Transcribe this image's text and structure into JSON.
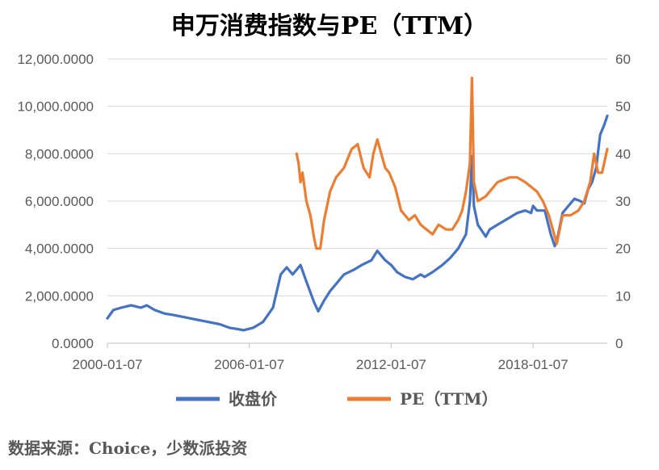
{
  "title": "申万消费指数与PE（TTM）",
  "source": "数据来源：Choice，少数派投资",
  "colors": {
    "index": "#4472C4",
    "pe": "#ED7D31",
    "grid": "#D9D9D9",
    "text": "#595959"
  },
  "chart_data": {
    "type": "line",
    "title": "申万消费指数与PE（TTM）",
    "x_tick_labels": [
      "2000-01-07",
      "2006-01-07",
      "2012-01-07",
      "2018-01-07"
    ],
    "x_range": [
      "2000-01-07",
      "2021-02-26"
    ],
    "y_left": {
      "lim": [
        0,
        12000
      ],
      "ticks": [
        "0.0000",
        "2,000.0000",
        "4,000.0000",
        "6,000.0000",
        "8,000.0000",
        "10,000.0000",
        "12,000.0000"
      ]
    },
    "y_right": {
      "lim": [
        0,
        60
      ],
      "ticks": [
        "0",
        "10",
        "20",
        "30",
        "40",
        "50",
        "60"
      ]
    },
    "grid": true,
    "legend_position": "bottom",
    "series": [
      {
        "name": "收盘价",
        "axis": "left",
        "color": "#4472C4",
        "x": [
          "2000-01-07",
          "2000-04-07",
          "2000-08-07",
          "2001-01-07",
          "2001-06-07",
          "2001-09-07",
          "2002-01-07",
          "2002-06-07",
          "2002-10-07",
          "2003-04-07",
          "2003-10-07",
          "2004-04-07",
          "2004-10-07",
          "2005-03-07",
          "2005-07-07",
          "2005-10-07",
          "2006-03-07",
          "2006-08-07",
          "2007-01-07",
          "2007-05-07",
          "2007-08-07",
          "2007-11-07",
          "2008-03-07",
          "2008-06-07",
          "2008-10-07",
          "2008-12-07",
          "2009-03-07",
          "2009-06-07",
          "2009-09-07",
          "2010-01-07",
          "2010-06-07",
          "2010-10-07",
          "2011-03-07",
          "2011-06-07",
          "2011-10-07",
          "2012-01-07",
          "2012-04-07",
          "2012-08-07",
          "2012-12-07",
          "2013-04-07",
          "2013-06-07",
          "2013-10-07",
          "2014-03-07",
          "2014-07-07",
          "2014-11-07",
          "2015-03-07",
          "2015-05-07",
          "2015-06-07",
          "2015-07-07",
          "2015-09-07",
          "2016-01-07",
          "2016-03-07",
          "2016-07-07",
          "2017-01-07",
          "2017-05-07",
          "2017-09-07",
          "2017-12-07",
          "2018-01-07",
          "2018-03-07",
          "2018-07-07",
          "2018-10-07",
          "2018-12-07",
          "2019-01-07",
          "2019-04-07",
          "2019-07-07",
          "2019-10-07",
          "2020-01-07",
          "2020-03-07",
          "2020-05-07",
          "2020-07-07",
          "2020-09-07",
          "2020-11-07",
          "2021-01-07",
          "2021-02-26"
        ],
        "values": [
          1050,
          1400,
          1500,
          1600,
          1500,
          1600,
          1400,
          1250,
          1200,
          1100,
          1000,
          900,
          800,
          650,
          600,
          550,
          650,
          900,
          1500,
          2900,
          3200,
          2900,
          3300,
          2600,
          1700,
          1350,
          1800,
          2200,
          2500,
          2900,
          3100,
          3300,
          3500,
          3900,
          3500,
          3300,
          3000,
          2800,
          2700,
          2900,
          2800,
          3000,
          3300,
          3600,
          4000,
          4600,
          6000,
          7900,
          5800,
          5000,
          4500,
          4800,
          5000,
          5300,
          5500,
          5600,
          5500,
          5800,
          5600,
          5600,
          4600,
          4100,
          4300,
          5500,
          5800,
          6100,
          6000,
          5900,
          6500,
          6800,
          7400,
          8800,
          9200,
          9600
        ]
      },
      {
        "name": "PE（TTM）",
        "axis": "right",
        "color": "#ED7D31",
        "x": [
          "2008-01-07",
          "2008-02-07",
          "2008-03-07",
          "2008-04-07",
          "2008-06-07",
          "2008-08-07",
          "2008-10-07",
          "2008-11-07",
          "2009-01-07",
          "2009-03-07",
          "2009-06-07",
          "2009-09-07",
          "2010-01-07",
          "2010-05-07",
          "2010-08-07",
          "2010-11-07",
          "2011-02-07",
          "2011-04-07",
          "2011-06-07",
          "2011-08-07",
          "2011-10-07",
          "2011-12-07",
          "2012-03-07",
          "2012-06-07",
          "2012-10-07",
          "2013-01-07",
          "2013-04-07",
          "2013-07-07",
          "2013-10-07",
          "2014-01-07",
          "2014-05-07",
          "2014-08-07",
          "2014-11-07",
          "2015-01-07",
          "2015-03-07",
          "2015-05-07",
          "2015-06-07",
          "2015-07-07",
          "2015-09-07",
          "2016-01-07",
          "2016-03-07",
          "2016-07-07",
          "2017-01-07",
          "2017-05-07",
          "2017-09-07",
          "2017-12-07",
          "2018-03-07",
          "2018-06-07",
          "2018-09-07",
          "2018-11-07",
          "2019-01-07",
          "2019-04-07",
          "2019-08-07",
          "2019-12-07",
          "2020-03-07",
          "2020-06-07",
          "2020-08-07",
          "2020-10-07",
          "2020-12-07",
          "2021-02-26"
        ],
        "values": [
          40,
          38,
          34,
          36,
          30,
          27,
          22,
          20,
          20,
          26,
          32,
          35,
          37,
          41,
          42,
          37,
          35,
          40,
          43,
          40,
          37,
          36,
          33,
          28,
          26,
          27,
          25,
          24,
          23,
          25,
          24,
          24,
          26,
          28,
          32,
          38,
          56,
          34,
          30,
          31,
          32,
          34,
          35,
          35,
          34,
          33,
          32,
          30,
          27,
          24,
          21,
          27,
          27,
          28,
          30,
          34,
          40,
          36,
          36,
          41
        ]
      }
    ]
  }
}
